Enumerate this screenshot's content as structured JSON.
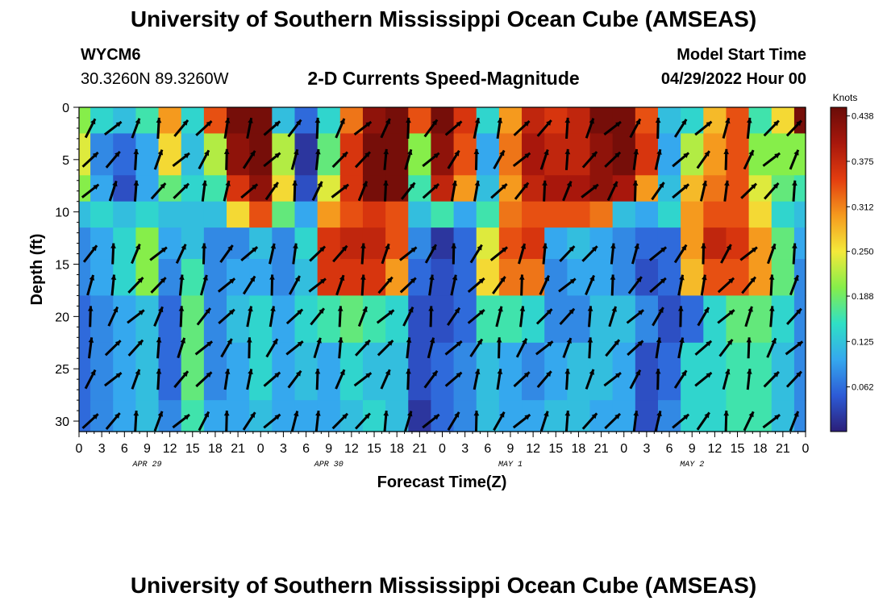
{
  "header": {
    "title": "University of Southern Mississippi Ocean Cube (AMSEAS)",
    "station": "WYCM6",
    "coords": "30.3260N  89.3260W",
    "subtitle": "2-D Currents Speed-Magnitude",
    "model_start_label": "Model Start Time",
    "model_start_value": "04/29/2022 Hour 00"
  },
  "footer": {
    "title": "University of Southern Mississippi Ocean Cube (AMSEAS)"
  },
  "chart_data": {
    "type": "heatmap",
    "title": "2-D Currents Speed-Magnitude",
    "xlabel": "Forecast Time(Z)",
    "ylabel": "Depth (ft)",
    "x_ticks": [
      "0",
      "3",
      "6",
      "9",
      "12",
      "15",
      "18",
      "21",
      "0",
      "3",
      "6",
      "9",
      "12",
      "15",
      "18",
      "21",
      "0",
      "3",
      "6",
      "9",
      "12",
      "15",
      "18",
      "21",
      "0",
      "3",
      "6",
      "9",
      "12",
      "15",
      "18",
      "21",
      "0"
    ],
    "x_range_hours": [
      0,
      96
    ],
    "date_labels": [
      "APR 29",
      "APR 30",
      "MAY 1",
      "MAY 2"
    ],
    "y_ticks": [
      0,
      5,
      10,
      15,
      20,
      25,
      30
    ],
    "y_range_ft": [
      0,
      31
    ],
    "depth_levels_ft": [
      0,
      5,
      8,
      10,
      13,
      16,
      20,
      25,
      31
    ],
    "colorbar": {
      "title": "Knots",
      "ticks": [
        "0.438",
        "0.375",
        "0.312",
        "0.250",
        "0.188",
        "0.125",
        "0.062"
      ],
      "range": [
        0,
        0.45
      ],
      "colors": [
        "#2b1e78",
        "#2d5bd6",
        "#35a8ee",
        "#2fe0c5",
        "#86ee4a",
        "#f4e93a",
        "#f59a1e",
        "#e33d0f",
        "#a8170c",
        "#6a0c08"
      ]
    },
    "speed_knots": [
      [
        0.2,
        0.14,
        0.12,
        0.16,
        0.3,
        0.14,
        0.34,
        0.44,
        0.44,
        0.12,
        0.06,
        0.14,
        0.32,
        0.42,
        0.44,
        0.34,
        0.44,
        0.36,
        0.14,
        0.3,
        0.38,
        0.36,
        0.38,
        0.44,
        0.44,
        0.34,
        0.12,
        0.14,
        0.28,
        0.34,
        0.16,
        0.26,
        0.44
      ],
      [
        0.24,
        0.08,
        0.06,
        0.1,
        0.26,
        0.12,
        0.22,
        0.42,
        0.44,
        0.22,
        0.02,
        0.18,
        0.36,
        0.44,
        0.44,
        0.2,
        0.42,
        0.34,
        0.1,
        0.32,
        0.4,
        0.38,
        0.38,
        0.42,
        0.44,
        0.36,
        0.1,
        0.22,
        0.3,
        0.34,
        0.2,
        0.2,
        0.2
      ],
      [
        0.2,
        0.1,
        0.04,
        0.1,
        0.18,
        0.14,
        0.16,
        0.36,
        0.42,
        0.26,
        0.04,
        0.24,
        0.36,
        0.44,
        0.44,
        0.16,
        0.38,
        0.3,
        0.12,
        0.3,
        0.38,
        0.4,
        0.4,
        0.42,
        0.4,
        0.3,
        0.12,
        0.28,
        0.32,
        0.34,
        0.24,
        0.18,
        0.16
      ],
      [
        0.12,
        0.14,
        0.12,
        0.14,
        0.12,
        0.12,
        0.12,
        0.26,
        0.34,
        0.18,
        0.1,
        0.3,
        0.34,
        0.36,
        0.34,
        0.12,
        0.16,
        0.1,
        0.16,
        0.32,
        0.34,
        0.34,
        0.34,
        0.32,
        0.12,
        0.1,
        0.14,
        0.3,
        0.34,
        0.34,
        0.26,
        0.14,
        0.12
      ],
      [
        0.08,
        0.1,
        0.14,
        0.2,
        0.1,
        0.12,
        0.08,
        0.08,
        0.12,
        0.08,
        0.14,
        0.36,
        0.38,
        0.38,
        0.34,
        0.08,
        0.02,
        0.06,
        0.24,
        0.34,
        0.36,
        0.1,
        0.12,
        0.1,
        0.08,
        0.06,
        0.06,
        0.3,
        0.38,
        0.36,
        0.3,
        0.18,
        0.1
      ],
      [
        0.08,
        0.1,
        0.14,
        0.2,
        0.08,
        0.16,
        0.08,
        0.1,
        0.1,
        0.08,
        0.12,
        0.36,
        0.36,
        0.36,
        0.3,
        0.06,
        0.04,
        0.06,
        0.26,
        0.32,
        0.32,
        0.08,
        0.1,
        0.1,
        0.08,
        0.04,
        0.06,
        0.28,
        0.34,
        0.34,
        0.3,
        0.18,
        0.08
      ],
      [
        0.06,
        0.08,
        0.1,
        0.12,
        0.06,
        0.18,
        0.08,
        0.12,
        0.14,
        0.1,
        0.14,
        0.16,
        0.18,
        0.16,
        0.14,
        0.04,
        0.04,
        0.06,
        0.16,
        0.16,
        0.14,
        0.08,
        0.08,
        0.12,
        0.12,
        0.08,
        0.04,
        0.06,
        0.14,
        0.18,
        0.18,
        0.14,
        0.08
      ],
      [
        0.06,
        0.08,
        0.1,
        0.12,
        0.06,
        0.18,
        0.08,
        0.1,
        0.14,
        0.1,
        0.12,
        0.1,
        0.14,
        0.12,
        0.12,
        0.04,
        0.06,
        0.08,
        0.12,
        0.1,
        0.08,
        0.1,
        0.12,
        0.12,
        0.1,
        0.04,
        0.06,
        0.14,
        0.14,
        0.16,
        0.16,
        0.12,
        0.08
      ],
      [
        0.06,
        0.08,
        0.1,
        0.12,
        0.08,
        0.16,
        0.1,
        0.1,
        0.12,
        0.1,
        0.1,
        0.1,
        0.12,
        0.14,
        0.12,
        0.02,
        0.06,
        0.08,
        0.12,
        0.1,
        0.1,
        0.12,
        0.12,
        0.1,
        0.1,
        0.04,
        0.08,
        0.14,
        0.14,
        0.16,
        0.16,
        0.12,
        0.08
      ]
    ]
  }
}
